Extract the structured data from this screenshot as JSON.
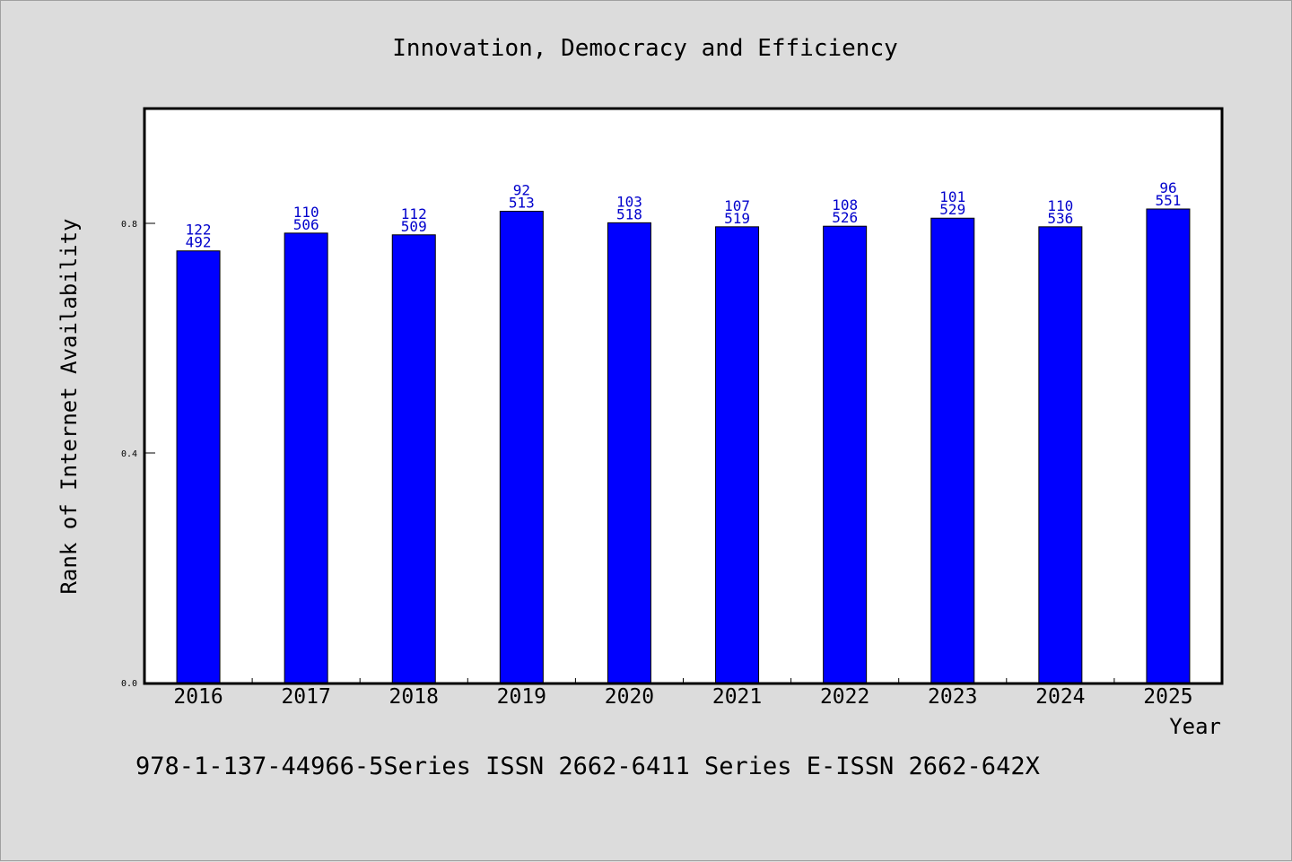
{
  "colors": {
    "background": "#dcdcdc",
    "plot_background": "#ffffff",
    "bar_fill": "#0000ff",
    "bar_label": "#0000cc"
  },
  "footer": "978-1-137-44966-5Series ISSN 2662-6411 Series E-ISSN 2662-642X",
  "chart_data": {
    "type": "bar",
    "title": "Innovation, Democracy and Efficiency",
    "xlabel": "Year",
    "ylabel": "Rank of Internet Availability",
    "ylim": [
      0,
      1.0
    ],
    "yticks": [
      0.0,
      0.4,
      0.8
    ],
    "ytick_labels": [
      "0.0",
      "0.4",
      "0.8"
    ],
    "categories": [
      "2016",
      "2017",
      "2018",
      "2019",
      "2020",
      "2021",
      "2022",
      "2023",
      "2024",
      "2025"
    ],
    "values": [
      0.752,
      0.783,
      0.78,
      0.821,
      0.801,
      0.794,
      0.795,
      0.809,
      0.794,
      0.825
    ],
    "bar_labels_top": [
      "122",
      "110",
      "112",
      "92",
      "103",
      "107",
      "108",
      "101",
      "110",
      "96"
    ],
    "bar_labels_bottom": [
      "492",
      "506",
      "509",
      "513",
      "518",
      "519",
      "526",
      "529",
      "536",
      "551"
    ],
    "grid": false,
    "legend": "none"
  }
}
